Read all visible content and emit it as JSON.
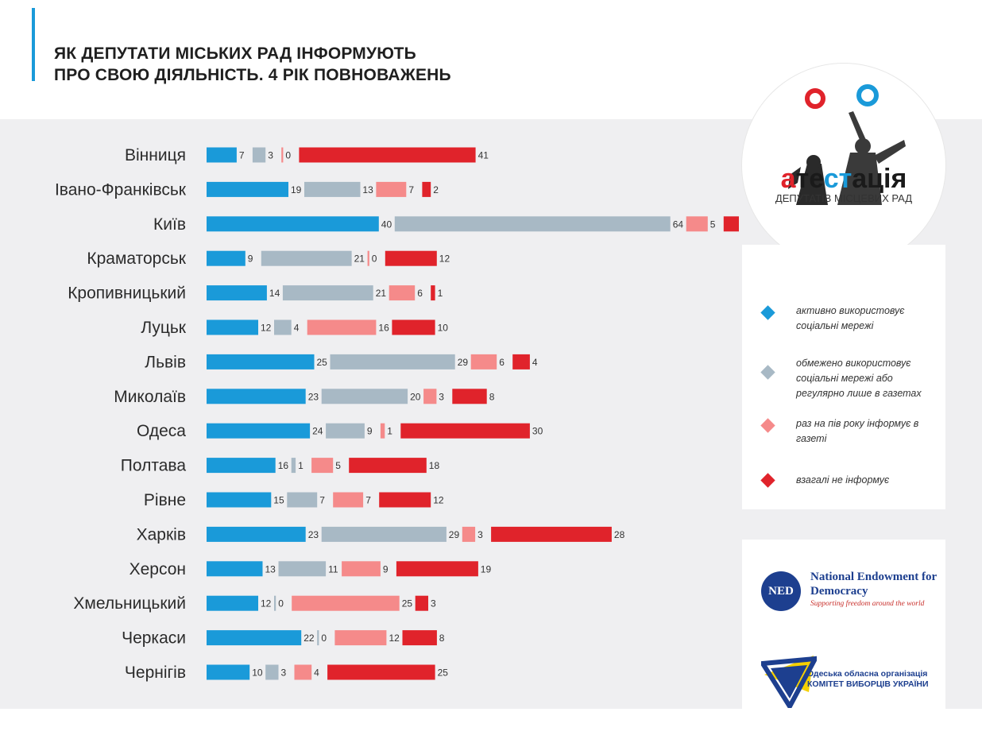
{
  "header": {
    "title_line1": "ЯК ДЕПУТАТИ МІСЬКИХ РАД ІНФОРМУЮТЬ",
    "title_line2": "ПРО СВОЮ ДІЯЛЬНІСТЬ. 4 РІК ПОВНОВАЖЕНЬ"
  },
  "logo": {
    "word": "атестація",
    "subtitle": "ДЕПУТАТІВ МІСЦЕВИХ РАД"
  },
  "legend": {
    "items": [
      {
        "label": "активно використовує соціальні мережі",
        "color": "#1a9ad9"
      },
      {
        "label": "обмежено використовує соціальні мережі або регулярно лише в газетах",
        "color": "#a8b9c5"
      },
      {
        "label": "раз на пів року інформує в газеті",
        "color": "#f58a8a"
      },
      {
        "label": "взагалі не інформує",
        "color": "#e0232b"
      }
    ]
  },
  "sponsors": {
    "ned_abbr": "NED",
    "ned_name": "National Endowment for Democracy",
    "ned_tagline": "Supporting freedom around the world",
    "kvu_line1": "Одеська обласна організація",
    "kvu_line2": "КОМІТЕТ ВИБОРЦІВ УКРАЇНИ"
  },
  "chart_data": {
    "type": "bar",
    "orientation": "horizontal",
    "stacked": true,
    "categories": [
      "Вінниця",
      "Івано-Франківськ",
      "Київ",
      "Краматорськ",
      "Кропивницький",
      "Луцьк",
      "Львів",
      "Миколаїв",
      "Одеса",
      "Полтава",
      "Рівне",
      "Харків",
      "Херсон",
      "Хмельницький",
      "Черкаси",
      "Чернігів"
    ],
    "series": [
      {
        "name": "активно використовує соціальні мережі",
        "color": "#1a9ad9",
        "values": [
          7,
          19,
          40,
          9,
          14,
          12,
          25,
          23,
          24,
          16,
          15,
          23,
          13,
          12,
          22,
          10
        ]
      },
      {
        "name": "обмежено використовує соціальні мережі або регулярно лише в газетах",
        "color": "#a8b9c5",
        "values": [
          3,
          13,
          64,
          21,
          21,
          4,
          29,
          20,
          9,
          1,
          7,
          29,
          11,
          0,
          0,
          3
        ]
      },
      {
        "name": "раз на пів року інформує в газеті",
        "color": "#f58a8a",
        "values": [
          0,
          7,
          5,
          0,
          6,
          16,
          6,
          3,
          1,
          5,
          7,
          3,
          9,
          25,
          12,
          4
        ]
      },
      {
        "name": "взагалі не інформує",
        "color": "#e0232b",
        "values": [
          41,
          2,
          5,
          12,
          1,
          10,
          4,
          8,
          30,
          18,
          12,
          28,
          19,
          3,
          8,
          25
        ]
      }
    ],
    "legend_position": "right",
    "grid": false
  }
}
